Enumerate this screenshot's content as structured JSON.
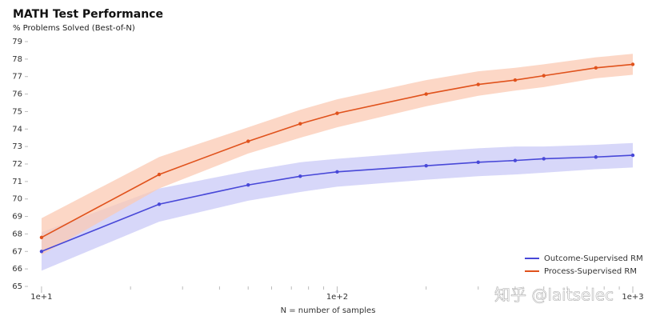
{
  "chart_data": {
    "type": "line",
    "title": "MATH Test Performance",
    "subtitle": "% Problems Solved (Best-of-N)",
    "xlabel": "N = number of samples",
    "watermark": "知乎 @laitselec",
    "xscale": "log",
    "x": [
      10,
      25,
      50,
      75,
      100,
      200,
      300,
      400,
      500,
      750,
      1000
    ],
    "xlim": [
      9,
      1000
    ],
    "xticks": [
      {
        "value": 10,
        "label": "1e+1"
      },
      {
        "value": 100,
        "label": "1e+2"
      },
      {
        "value": 1000,
        "label": "1e+3"
      }
    ],
    "xminorticks": [
      20,
      30,
      40,
      50,
      60,
      70,
      80,
      90,
      200,
      300,
      400,
      500,
      600,
      700,
      800,
      900
    ],
    "ylim": [
      65,
      79
    ],
    "yticks": [
      65,
      66,
      67,
      68,
      69,
      70,
      71,
      72,
      73,
      74,
      75,
      76,
      77,
      78,
      79
    ],
    "grid": false,
    "legend": "lower-right",
    "series": [
      {
        "name": "Outcome-Supervised RM",
        "color": "#4848d8",
        "band_color": "#c9c9f7",
        "values": [
          67.0,
          69.7,
          70.8,
          71.3,
          71.55,
          71.9,
          72.1,
          72.2,
          72.3,
          72.4,
          72.5
        ],
        "lower": [
          65.9,
          68.7,
          69.9,
          70.4,
          70.7,
          71.1,
          71.3,
          71.4,
          71.5,
          71.7,
          71.8
        ],
        "upper": [
          68.1,
          70.6,
          71.6,
          72.1,
          72.3,
          72.7,
          72.9,
          73.0,
          73.0,
          73.1,
          73.2
        ]
      },
      {
        "name": "Process-Supervised RM",
        "color": "#e0521c",
        "band_color": "#fbc9b3",
        "values": [
          67.8,
          71.4,
          73.3,
          74.3,
          74.9,
          76.0,
          76.55,
          76.8,
          77.05,
          77.5,
          77.7
        ],
        "lower": [
          66.8,
          70.6,
          72.6,
          73.5,
          74.1,
          75.3,
          75.9,
          76.2,
          76.4,
          76.9,
          77.1
        ],
        "upper": [
          68.9,
          72.4,
          74.1,
          75.1,
          75.7,
          76.8,
          77.3,
          77.5,
          77.7,
          78.1,
          78.3
        ]
      }
    ]
  }
}
